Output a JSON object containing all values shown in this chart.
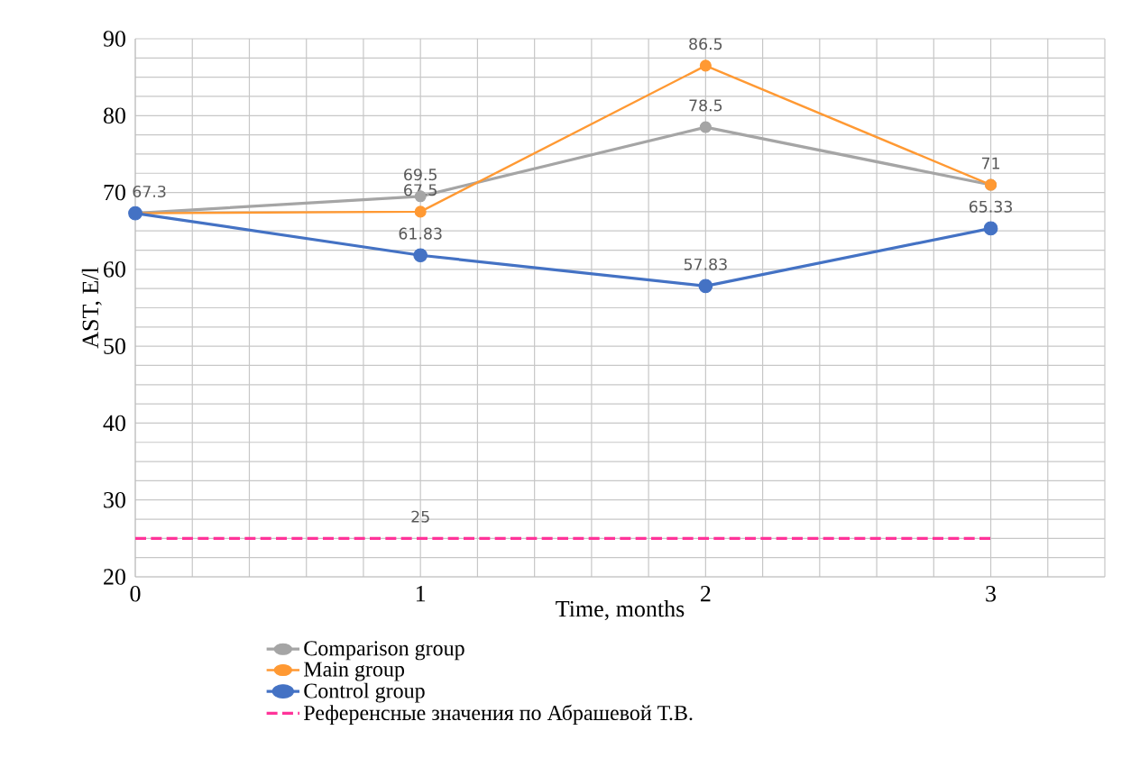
{
  "chart_data": {
    "type": "line",
    "xlabel": "Time, months",
    "ylabel": "AST, E/l",
    "x": [
      0,
      1,
      2,
      3
    ],
    "xlim": [
      0,
      3.4
    ],
    "ylim": [
      20,
      90
    ],
    "xticks": [
      0,
      {
        "value": 0.2,
        "label": null
      },
      {
        "value": 0.4,
        "label": null
      },
      {
        "value": 0.6,
        "label": null
      },
      {
        "value": 0.8,
        "label": null
      },
      1,
      {
        "value": 1.2,
        "label": null
      },
      {
        "value": 1.4,
        "label": null
      },
      {
        "value": 1.6,
        "label": null
      },
      {
        "value": 1.8,
        "label": null
      },
      2,
      {
        "value": 2.2,
        "label": null
      },
      {
        "value": 2.4,
        "label": null
      },
      {
        "value": 2.6,
        "label": null
      },
      {
        "value": 2.8,
        "label": null
      },
      3,
      {
        "value": 3.2,
        "label": null
      },
      {
        "value": 3.4,
        "label": null
      }
    ],
    "yticks": [
      20,
      {
        "value": 22.5,
        "label": null
      },
      {
        "value": 25,
        "label": null
      },
      {
        "value": 27.5,
        "label": null
      },
      30,
      {
        "value": 32.5,
        "label": null
      },
      {
        "value": 35,
        "label": null
      },
      {
        "value": 37.5,
        "label": null
      },
      40,
      {
        "value": 42.5,
        "label": null
      },
      {
        "value": 45,
        "label": null
      },
      {
        "value": 47.5,
        "label": null
      },
      50,
      {
        "value": 52.5,
        "label": null
      },
      {
        "value": 55,
        "label": null
      },
      {
        "value": 57.5,
        "label": null
      },
      60,
      {
        "value": 62.5,
        "label": null
      },
      {
        "value": 65,
        "label": null
      },
      {
        "value": 67.5,
        "label": null
      },
      70,
      {
        "value": 72.5,
        "label": null
      },
      {
        "value": 75,
        "label": null
      },
      {
        "value": 77.5,
        "label": null
      },
      80,
      {
        "value": 82.5,
        "label": null
      },
      {
        "value": 85,
        "label": null
      },
      {
        "value": 87.5,
        "label": null
      },
      90
    ],
    "grid": true,
    "legend": "bottom",
    "marker": "circle",
    "line_style": "solid",
    "series": [
      {
        "name": "Comparison group",
        "color": "#a5a5a5",
        "values": [
          67.3,
          69.5,
          78.5,
          71
        ],
        "value_labels": [
          null,
          "69.5",
          "78.5",
          null
        ]
      },
      {
        "name": "Main group",
        "color": "#ff9933",
        "values": [
          67.3,
          67.5,
          86.5,
          71
        ],
        "value_labels": [
          null,
          "67.5",
          "86.5",
          "71"
        ]
      },
      {
        "name": "Control group",
        "color": "#4472c4",
        "values": [
          67.3,
          61.83,
          57.83,
          65.33
        ],
        "value_labels": [
          "67.3",
          "61.83",
          "57.83",
          "65.33"
        ]
      },
      {
        "name": "Референсные значения по Абрашевой Т.В.",
        "color": "#ff3399",
        "values": [
          25,
          25,
          25,
          25
        ],
        "marker": "none",
        "line_style": "dashed",
        "value_labels": [
          null,
          "25",
          null,
          null
        ]
      }
    ]
  }
}
